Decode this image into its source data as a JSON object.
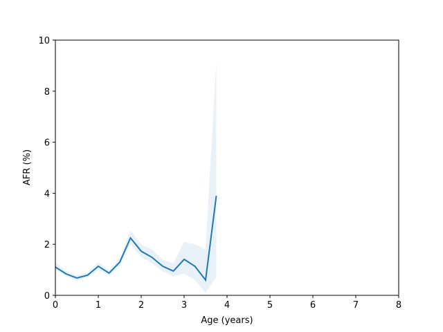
{
  "chart_data": {
    "type": "line",
    "xlabel": "Age (years)",
    "ylabel": "AFR (%)",
    "x": [
      0,
      0.25,
      0.5,
      0.75,
      1,
      1.25,
      1.5,
      1.75,
      2,
      2.25,
      2.5,
      2.75,
      3,
      3.25,
      3.5,
      3.75
    ],
    "series": [
      {
        "color": "#1f77b4",
        "values": [
          1.11,
          0.84,
          0.68,
          0.79,
          1.14,
          0.87,
          1.3,
          2.25,
          1.73,
          1.49,
          1.14,
          0.95,
          1.41,
          1.14,
          0.6,
          3.9
        ],
        "lower": [
          1.0,
          0.75,
          0.58,
          0.7,
          1.0,
          0.78,
          1.15,
          2.0,
          1.5,
          1.25,
          0.95,
          0.75,
          0.85,
          0.6,
          0.1,
          0.7
        ],
        "upper": [
          1.3,
          0.95,
          0.78,
          0.9,
          1.3,
          0.98,
          1.45,
          2.55,
          2.0,
          1.8,
          1.4,
          1.25,
          2.1,
          2.0,
          1.8,
          9.2
        ],
        "band_color": "#1f77b4"
      }
    ],
    "xlim": [
      0,
      8
    ],
    "xticks": [
      0,
      1,
      2,
      3,
      4,
      5,
      6,
      7,
      8
    ],
    "ylim": [
      0,
      10
    ],
    "yticks": [
      0,
      2,
      4,
      6,
      8,
      10
    ]
  }
}
